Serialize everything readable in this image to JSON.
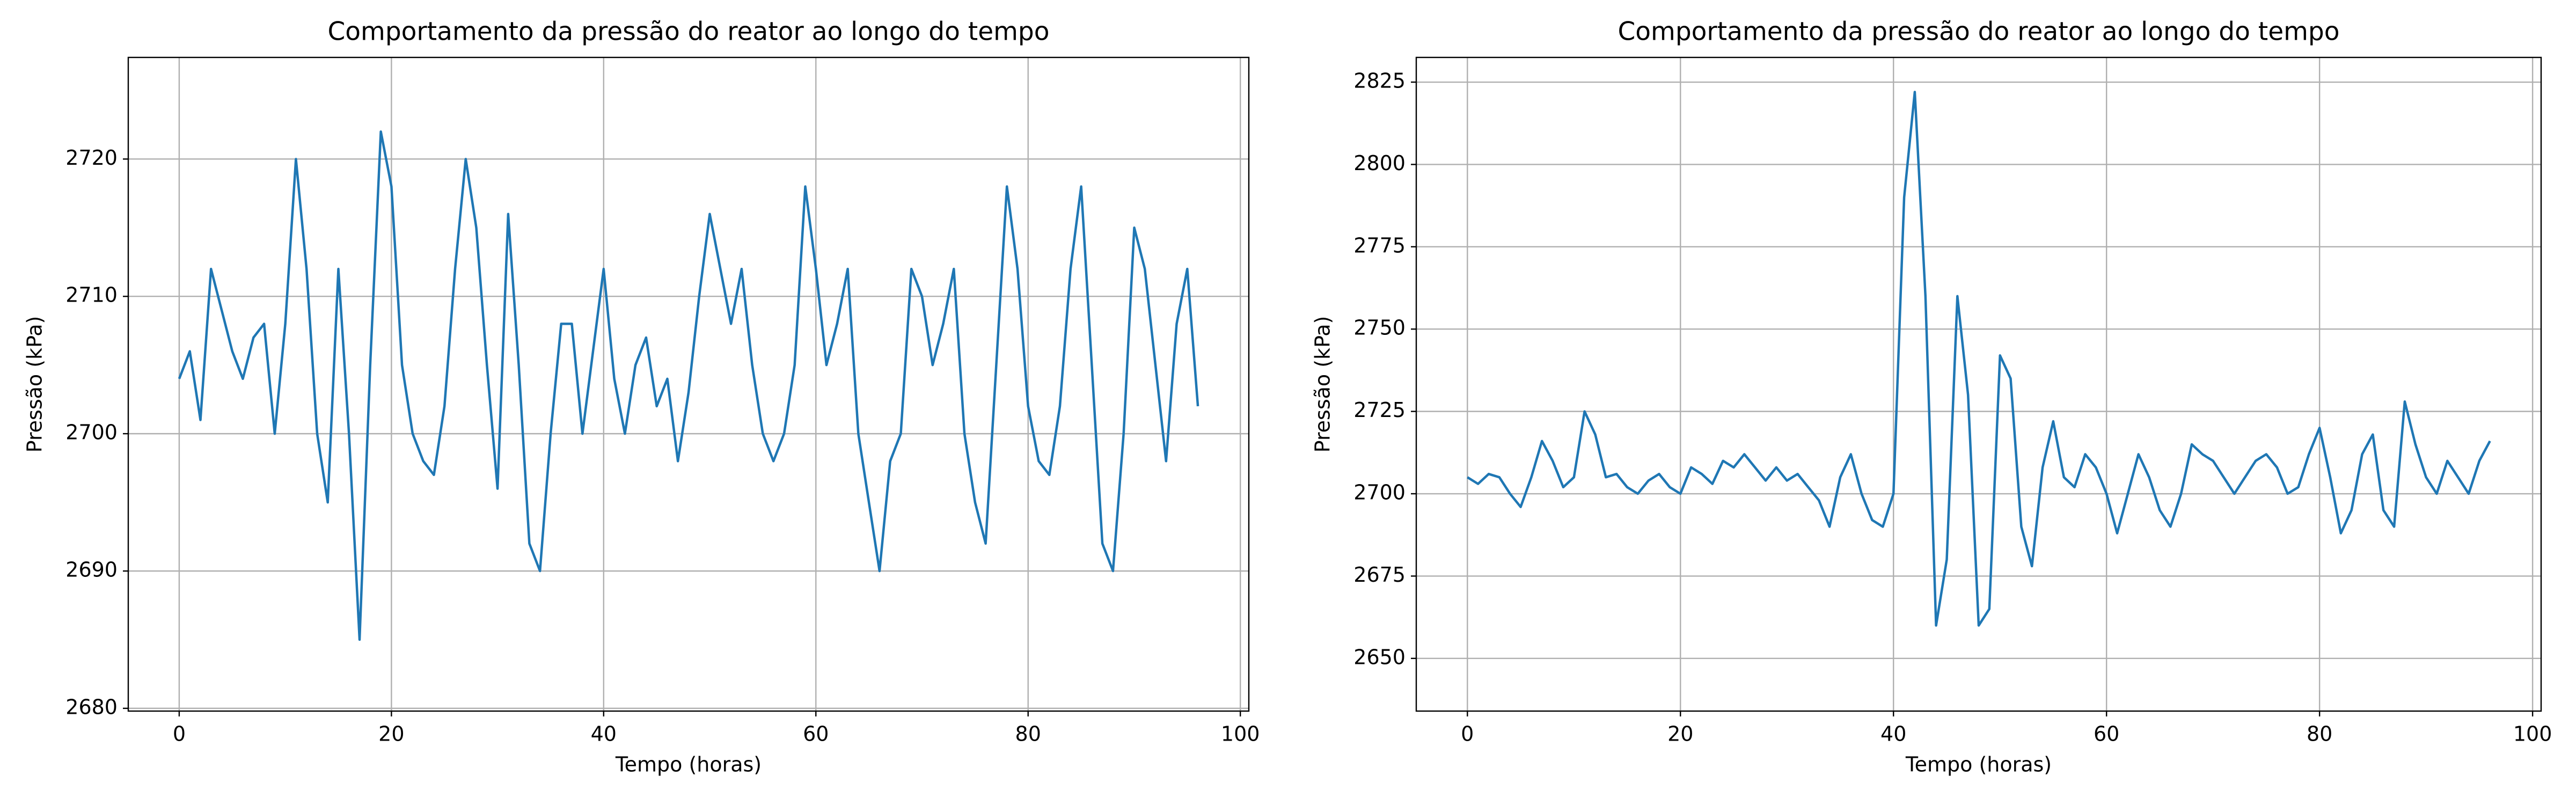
{
  "chart_data": [
    {
      "type": "line",
      "title": "Comportamento da pressão do reator ao longo do tempo",
      "xlabel": "Tempo (horas)",
      "ylabel": "Pressão (kPa)",
      "x": [
        0,
        1,
        2,
        3,
        4,
        5,
        6,
        7,
        8,
        9,
        10,
        11,
        12,
        13,
        14,
        15,
        16,
        17,
        18,
        19,
        20,
        21,
        22,
        23,
        24,
        25,
        26,
        27,
        28,
        29,
        30,
        31,
        32,
        33,
        34,
        35,
        36,
        37,
        38,
        39,
        40,
        41,
        42,
        43,
        44,
        45,
        46,
        47,
        48,
        49,
        50,
        51,
        52,
        53,
        54,
        55,
        56,
        57,
        58,
        59,
        60,
        61,
        62,
        63,
        64,
        65,
        66,
        67,
        68,
        69,
        70,
        71,
        72,
        73,
        74,
        75,
        76,
        77,
        78,
        79,
        80,
        81,
        82,
        83,
        84,
        85,
        86,
        87,
        88,
        89,
        90,
        91,
        92,
        93,
        94,
        95,
        96
      ],
      "series": [
        {
          "color": "#1f77b4",
          "values": [
            2704,
            2706,
            2701,
            2712,
            2709,
            2706,
            2704,
            2707,
            2708,
            2700,
            2708,
            2720,
            2712,
            2700,
            2695,
            2712,
            2700,
            2685,
            2705,
            2722,
            2718,
            2705,
            2700,
            2698,
            2697,
            2702,
            2712,
            2720,
            2715,
            2705,
            2696,
            2716,
            2705,
            2692,
            2690,
            2700,
            2708,
            2708,
            2700,
            2706,
            2712,
            2704,
            2700,
            2705,
            2707,
            2702,
            2704,
            2698,
            2703,
            2710,
            2716,
            2712,
            2708,
            2712,
            2705,
            2700,
            2698,
            2700,
            2705,
            2718,
            2712,
            2705,
            2708,
            2712,
            2700,
            2695,
            2690,
            2698,
            2700,
            2712,
            2710,
            2705,
            2708,
            2712,
            2700,
            2695,
            2692,
            2705,
            2718,
            2712,
            2702,
            2698,
            2697,
            2702,
            2712,
            2718,
            2705,
            2692,
            2690,
            2700,
            2715,
            2712,
            2705,
            2698,
            2708,
            2712,
            2702
          ]
        }
      ],
      "xlim": [
        -4.8,
        100.8
      ],
      "ylim": [
        2679.8,
        2727.4
      ],
      "xticks": [
        0,
        20,
        40,
        60,
        80,
        100
      ],
      "yticks": [
        2680,
        2690,
        2700,
        2710,
        2720
      ],
      "grid": true
    },
    {
      "type": "line",
      "title": "Comportamento da pressão do reator ao longo do tempo",
      "xlabel": "Tempo (horas)",
      "ylabel": "Pressão (kPa)",
      "x": [
        0,
        1,
        2,
        3,
        4,
        5,
        6,
        7,
        8,
        9,
        10,
        11,
        12,
        13,
        14,
        15,
        16,
        17,
        18,
        19,
        20,
        21,
        22,
        23,
        24,
        25,
        26,
        27,
        28,
        29,
        30,
        31,
        32,
        33,
        34,
        35,
        36,
        37,
        38,
        39,
        40,
        41,
        42,
        43,
        44,
        45,
        46,
        47,
        48,
        49,
        50,
        51,
        52,
        53,
        54,
        55,
        56,
        57,
        58,
        59,
        60,
        61,
        62,
        63,
        64,
        65,
        66,
        67,
        68,
        69,
        70,
        71,
        72,
        73,
        74,
        75,
        76,
        77,
        78,
        79,
        80,
        81,
        82,
        83,
        84,
        85,
        86,
        87,
        88,
        89,
        90,
        91,
        92,
        93,
        94,
        95,
        96
      ],
      "series": [
        {
          "color": "#1f77b4",
          "values": [
            2705,
            2703,
            2706,
            2705,
            2700,
            2696,
            2705,
            2716,
            2710,
            2702,
            2705,
            2725,
            2718,
            2705,
            2706,
            2702,
            2700,
            2704,
            2706,
            2702,
            2700,
            2708,
            2706,
            2703,
            2710,
            2708,
            2712,
            2708,
            2704,
            2708,
            2704,
            2706,
            2702,
            2698,
            2690,
            2705,
            2712,
            2700,
            2692,
            2690,
            2700,
            2790,
            2822,
            2760,
            2660,
            2680,
            2760,
            2730,
            2660,
            2665,
            2742,
            2735,
            2690,
            2678,
            2708,
            2722,
            2705,
            2702,
            2712,
            2708,
            2700,
            2688,
            2700,
            2712,
            2705,
            2695,
            2690,
            2700,
            2715,
            2712,
            2710,
            2705,
            2700,
            2705,
            2710,
            2712,
            2708,
            2700,
            2702,
            2712,
            2720,
            2705,
            2688,
            2695,
            2712,
            2718,
            2695,
            2690,
            2728,
            2715,
            2705,
            2700,
            2710,
            2705,
            2700,
            2710,
            2716
          ]
        }
      ],
      "xlim": [
        -4.8,
        100.8
      ],
      "ylim": [
        2634,
        2832.5
      ],
      "xticks": [
        0,
        20,
        40,
        60,
        80,
        100
      ],
      "yticks": [
        2650,
        2675,
        2700,
        2725,
        2750,
        2775,
        2800,
        2825
      ],
      "grid": true
    }
  ]
}
